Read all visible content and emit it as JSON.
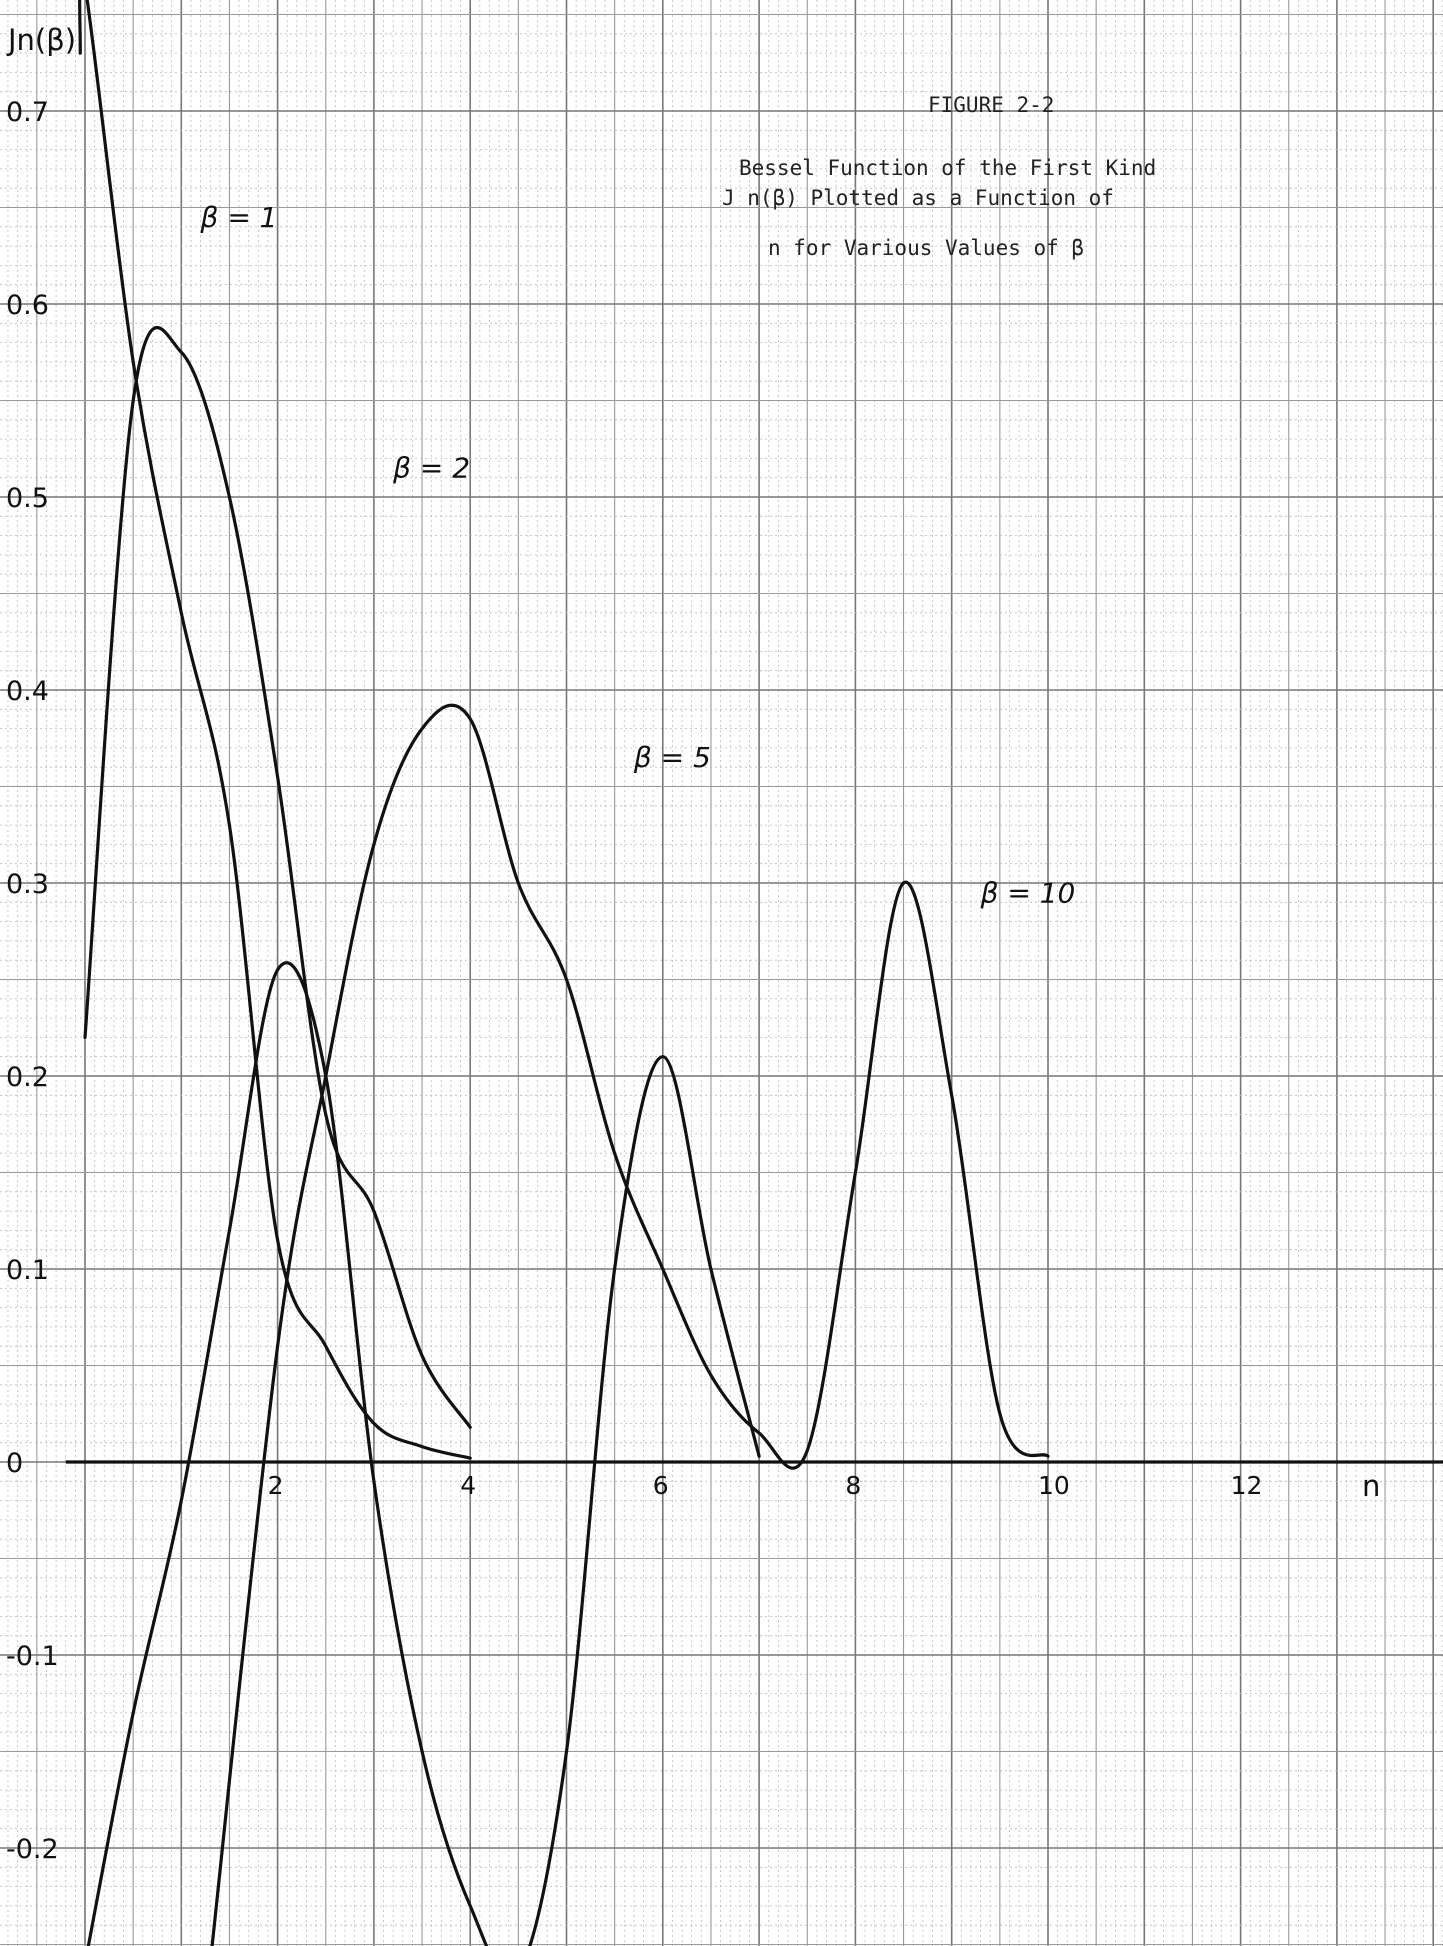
{
  "figure": {
    "number": "FIGURE 2-2",
    "title_line1": "Bessel Function of the First Kind",
    "title_line2": "J n(β) Plotted as a Function of",
    "title_line3": "n for Various Values of β"
  },
  "chart_data": {
    "type": "line",
    "ylabel": "Jn(β)",
    "xlabel": "n",
    "xlim": [
      0,
      14.3
    ],
    "ylim": [
      -0.26,
      0.75
    ],
    "x_ticks": [
      2,
      4,
      6,
      8,
      10,
      12
    ],
    "x_tick_labels": [
      "2",
      "4",
      "6",
      "8",
      "10",
      "12"
    ],
    "y_ticks": [
      0.7,
      0.6,
      0.5,
      0.4,
      0.3,
      0.2,
      0.1,
      0,
      -0.1,
      -0.2
    ],
    "y_tick_labels": [
      "0.7",
      "0.6",
      "0.5",
      "0.4",
      "0.3",
      "0.2",
      "0.1",
      "0",
      "-0.1",
      "-0.2"
    ],
    "grid": true,
    "series": [
      {
        "name": "β = 1",
        "x": [
          -0.05,
          0,
          0.5,
          1,
          1.5,
          2,
          2.5,
          3,
          3.5,
          4
        ],
        "y": [
          0.73,
          0.765,
          0.57,
          0.44,
          0.33,
          0.115,
          0.06,
          0.02,
          0.008,
          0.002
        ]
      },
      {
        "name": "β = 2",
        "x": [
          0,
          0.5,
          1,
          1.5,
          2,
          2.5,
          3,
          3.5,
          4
        ],
        "y": [
          0.22,
          0.55,
          0.575,
          0.5,
          0.355,
          0.18,
          0.13,
          0.055,
          0.018
        ]
      },
      {
        "name": "β = 5",
        "x": [
          0,
          0.5,
          1,
          1.5,
          2,
          2.5,
          3,
          3.5,
          4,
          4.5,
          5,
          5.5,
          6,
          6.5,
          7
        ],
        "y": [
          -0.26,
          -0.13,
          -0.02,
          0.12,
          0.255,
          0.2,
          -0.01,
          -0.15,
          -0.23,
          -0.265,
          -0.15,
          0.1,
          0.21,
          0.1,
          0.003
        ]
      },
      {
        "name": "β = 10",
        "x": [
          1.3,
          2,
          2.5,
          3,
          3.5,
          4,
          4.5,
          5,
          5.5,
          6,
          6.5,
          7,
          7.5,
          8,
          8.5,
          9,
          9.5,
          10
        ],
        "y": [
          -0.26,
          0.06,
          0.2,
          0.32,
          0.38,
          0.385,
          0.3,
          0.25,
          0.16,
          0.1,
          0.045,
          0.015,
          0.006,
          0.15,
          0.3,
          0.19,
          0.025,
          0.003
        ]
      }
    ]
  }
}
